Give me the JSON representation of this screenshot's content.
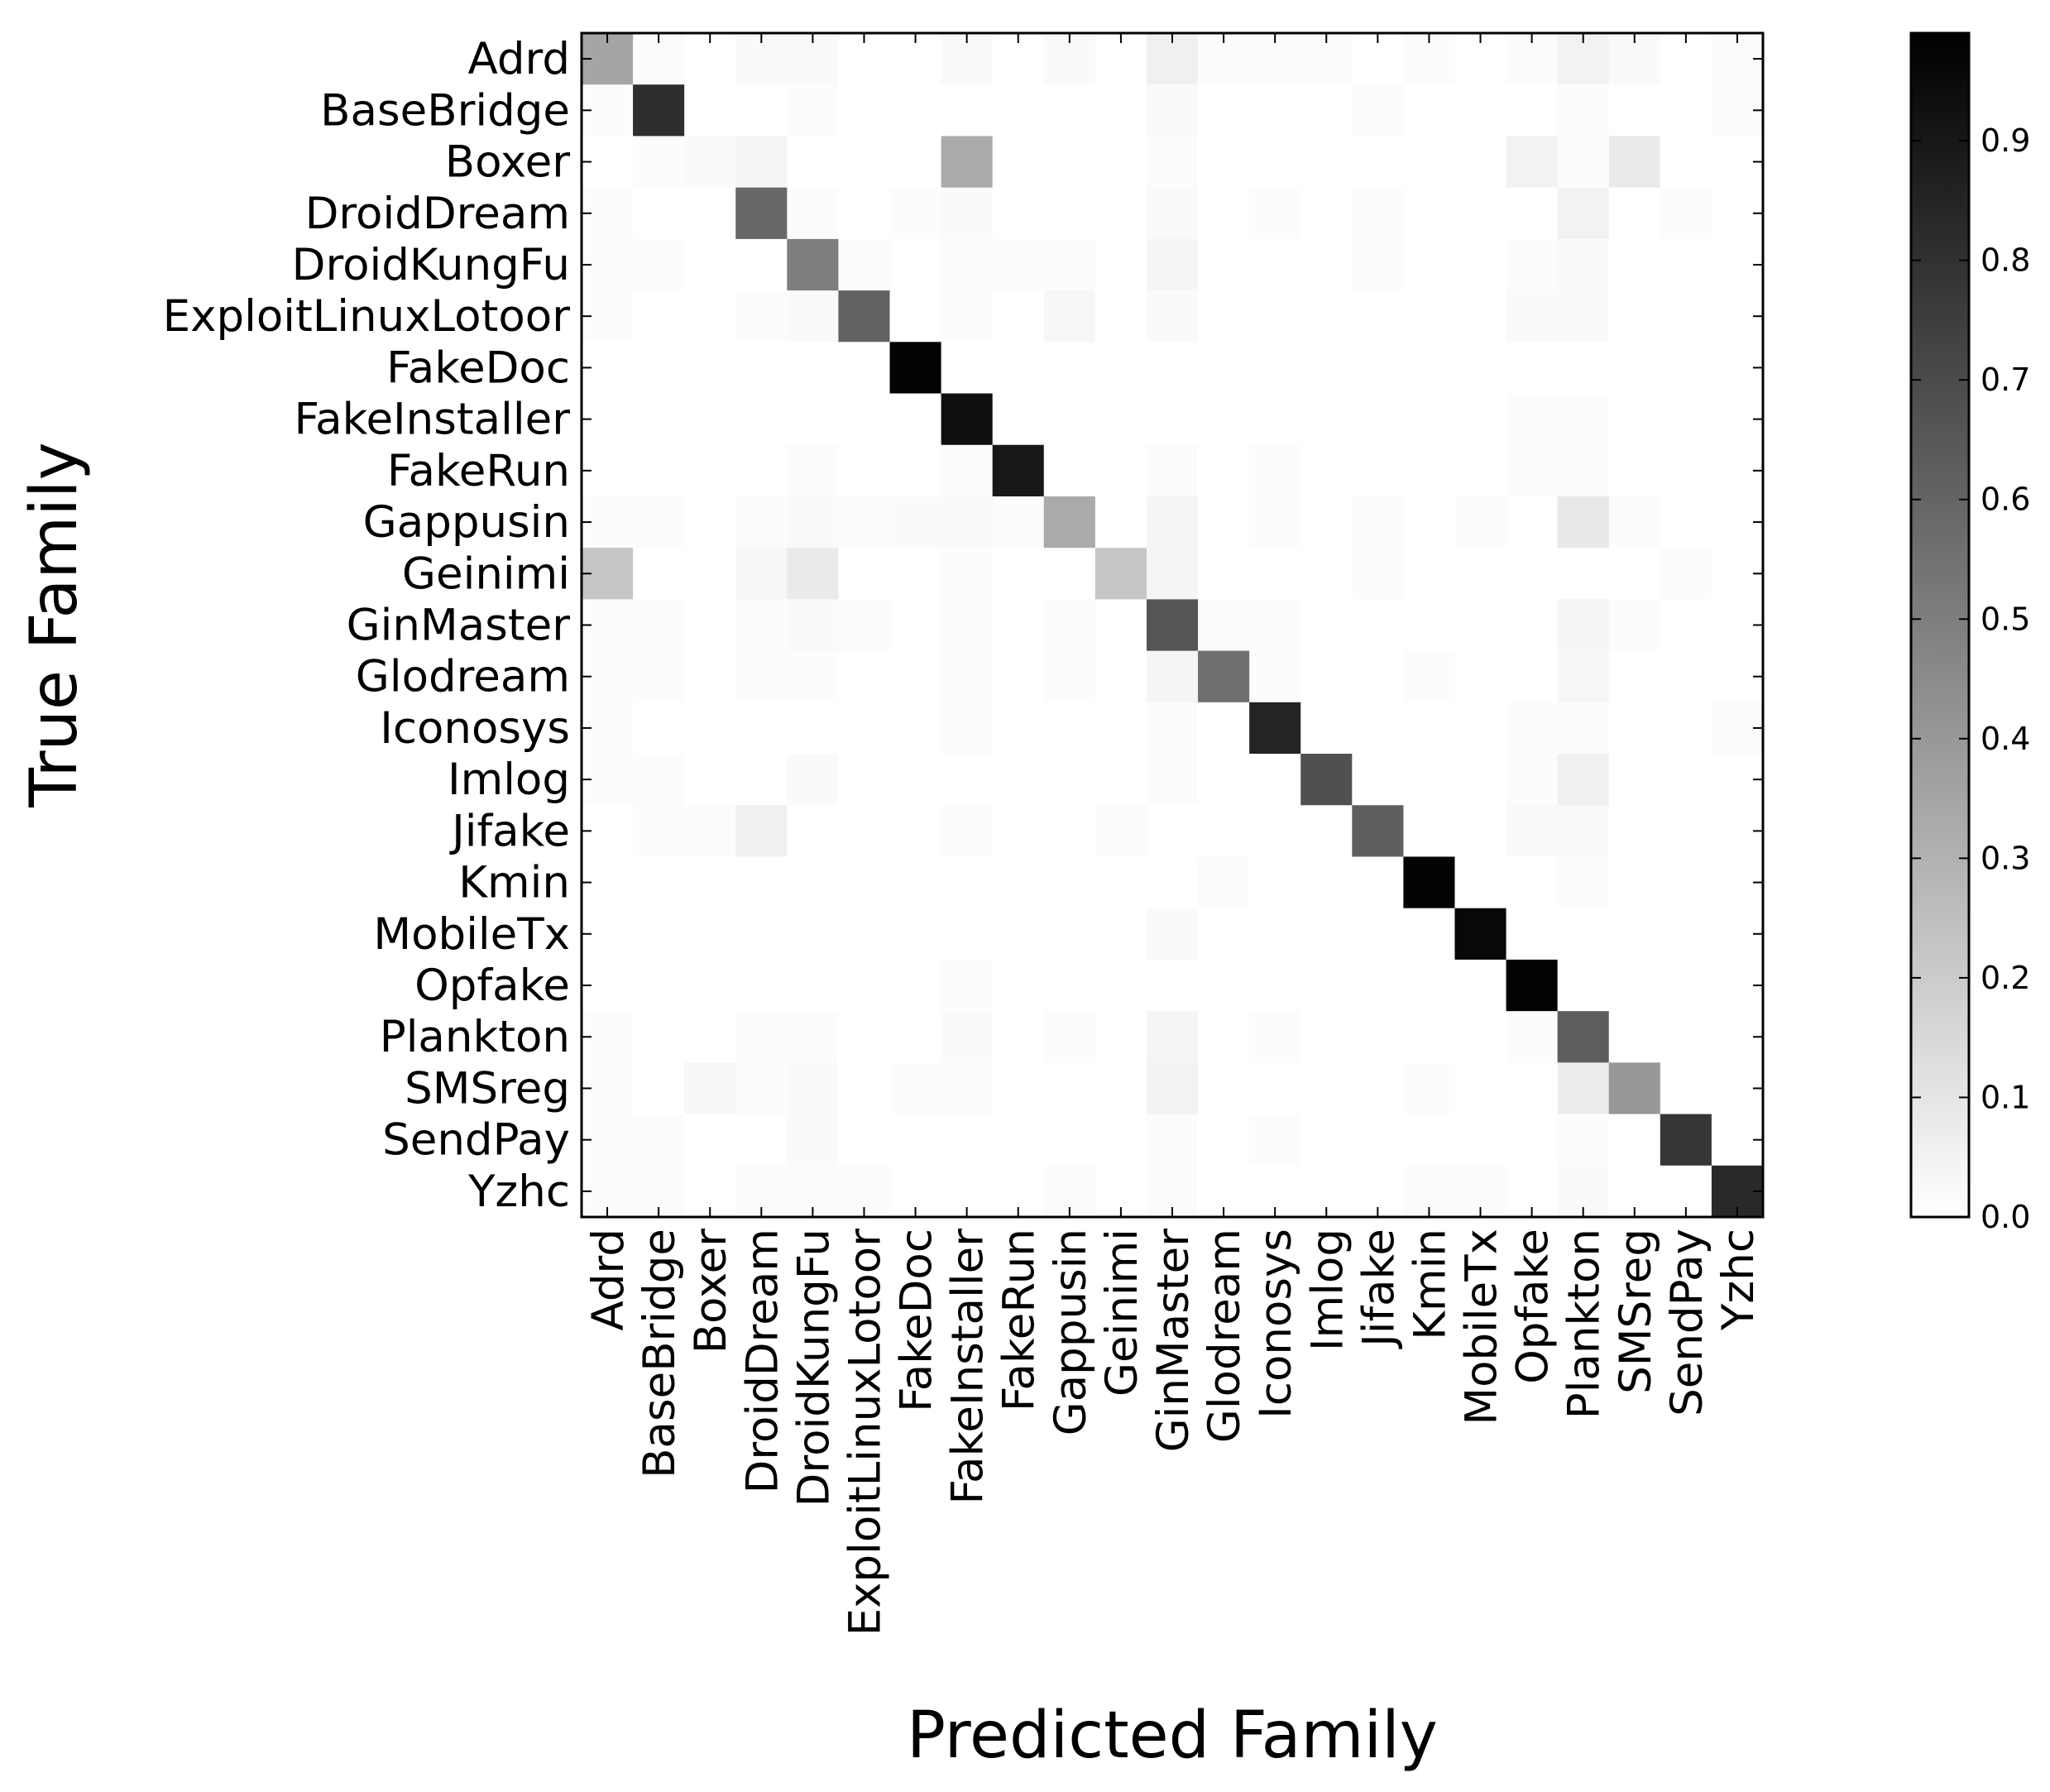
{
  "chart_data": {
    "type": "heatmap",
    "title": "",
    "xlabel": "Predicted Family",
    "ylabel": "True Family",
    "categories": [
      "Adrd",
      "BaseBridge",
      "Boxer",
      "DroidDream",
      "DroidKungFu",
      "ExploitLinuxLotoor",
      "FakeDoc",
      "FakeInstaller",
      "FakeRun",
      "Gappusin",
      "Geinimi",
      "GinMaster",
      "Glodream",
      "Iconosys",
      "Imlog",
      "Jifake",
      "Kmin",
      "MobileTx",
      "Opfake",
      "Plankton",
      "SMSreg",
      "SendPay",
      "Yzhc"
    ],
    "value_range": [
      0.0,
      1.0
    ],
    "colormap": "gray_r",
    "colorbar": {
      "ticks": [
        0.0,
        0.1,
        0.2,
        0.3,
        0.4,
        0.5,
        0.6,
        0.7,
        0.8,
        0.9
      ],
      "tick_labels": [
        "0.0",
        "0.1",
        "0.2",
        "0.3",
        "0.4",
        "0.5",
        "0.6",
        "0.7",
        "0.8",
        "0.9"
      ],
      "max": 0.99
    },
    "matrix": [
      [
        0.35,
        0.01,
        0,
        0.02,
        0.02,
        0,
        0,
        0.02,
        0,
        0.02,
        0,
        0.06,
        0.01,
        0.01,
        0.01,
        0,
        0.01,
        0,
        0.01,
        0.05,
        0.02,
        0,
        0.01
      ],
      [
        0.01,
        0.81,
        0,
        0,
        0.01,
        0,
        0,
        0,
        0,
        0,
        0,
        0.02,
        0,
        0,
        0,
        0.01,
        0,
        0,
        0,
        0.01,
        0,
        0,
        0.01
      ],
      [
        0,
        0.01,
        0.02,
        0.04,
        0,
        0,
        0,
        0.33,
        0,
        0,
        0,
        0.01,
        0,
        0,
        0,
        0,
        0,
        0,
        0.05,
        0.01,
        0.08,
        0,
        0
      ],
      [
        0.01,
        0,
        0,
        0.59,
        0.01,
        0,
        0.01,
        0.02,
        0,
        0,
        0,
        0.02,
        0,
        0.01,
        0,
        0.01,
        0,
        0,
        0,
        0.05,
        0,
        0.01,
        0
      ],
      [
        0.01,
        0.01,
        0,
        0,
        0.5,
        0.01,
        0,
        0.01,
        0.01,
        0.01,
        0,
        0.04,
        0,
        0,
        0,
        0.01,
        0,
        0,
        0.01,
        0.02,
        0,
        0,
        0
      ],
      [
        0.01,
        0,
        0,
        0.01,
        0.02,
        0.61,
        0,
        0.01,
        0,
        0.03,
        0,
        0.02,
        0,
        0,
        0,
        0,
        0,
        0,
        0.02,
        0.02,
        0,
        0,
        0
      ],
      [
        0,
        0,
        0,
        0,
        0,
        0,
        0.98,
        0,
        0,
        0,
        0,
        0,
        0,
        0,
        0,
        0,
        0,
        0,
        0,
        0,
        0,
        0,
        0
      ],
      [
        0,
        0,
        0,
        0,
        0,
        0,
        0,
        0.93,
        0,
        0,
        0,
        0,
        0,
        0,
        0,
        0,
        0,
        0,
        0.01,
        0.01,
        0,
        0,
        0
      ],
      [
        0,
        0,
        0,
        0,
        0.01,
        0,
        0,
        0.01,
        0.9,
        0,
        0,
        0.01,
        0,
        0.01,
        0,
        0,
        0,
        0,
        0.01,
        0.01,
        0,
        0,
        0
      ],
      [
        0.01,
        0.01,
        0,
        0.01,
        0.02,
        0.01,
        0.02,
        0.02,
        0.01,
        0.33,
        0,
        0.04,
        0,
        0.01,
        0,
        0.01,
        0,
        0.01,
        0,
        0.09,
        0.01,
        0,
        0
      ],
      [
        0.22,
        0,
        0,
        0.03,
        0.08,
        0,
        0,
        0.01,
        0,
        0,
        0.22,
        0.04,
        0,
        0,
        0,
        0.01,
        0,
        0,
        0,
        0,
        0,
        0.01,
        0
      ],
      [
        0.01,
        0.01,
        0,
        0.01,
        0.02,
        0.01,
        0,
        0.01,
        0,
        0.01,
        0,
        0.66,
        0.01,
        0.01,
        0,
        0,
        0,
        0,
        0,
        0.04,
        0.01,
        0,
        0
      ],
      [
        0.01,
        0.01,
        0,
        0.01,
        0.01,
        0,
        0,
        0.01,
        0,
        0.01,
        0,
        0.04,
        0.56,
        0.01,
        0,
        0,
        0.01,
        0,
        0,
        0.03,
        0,
        0,
        0
      ],
      [
        0.01,
        0,
        0,
        0,
        0,
        0,
        0,
        0.01,
        0,
        0,
        0,
        0.01,
        0,
        0.85,
        0,
        0,
        0,
        0,
        0.01,
        0.01,
        0,
        0,
        0.01
      ],
      [
        0.01,
        0.01,
        0,
        0,
        0.02,
        0,
        0,
        0,
        0,
        0,
        0,
        0.01,
        0,
        0,
        0.68,
        0,
        0,
        0,
        0.01,
        0.06,
        0,
        0,
        0
      ],
      [
        0,
        0.01,
        0.01,
        0.06,
        0,
        0,
        0,
        0.01,
        0,
        0,
        0.01,
        0,
        0,
        0,
        0,
        0.62,
        0,
        0,
        0.02,
        0.02,
        0,
        0,
        0
      ],
      [
        0,
        0,
        0,
        0,
        0,
        0,
        0,
        0,
        0,
        0,
        0,
        0,
        0.01,
        0,
        0,
        0,
        0.98,
        0,
        0,
        0.01,
        0,
        0,
        0
      ],
      [
        0,
        0,
        0,
        0,
        0,
        0,
        0,
        0,
        0,
        0,
        0,
        0.02,
        0,
        0,
        0,
        0,
        0,
        0.96,
        0,
        0,
        0,
        0,
        0
      ],
      [
        0,
        0,
        0,
        0,
        0,
        0,
        0,
        0.01,
        0,
        0,
        0,
        0,
        0,
        0,
        0,
        0,
        0,
        0,
        0.98,
        0,
        0,
        0,
        0
      ],
      [
        0.01,
        0,
        0,
        0.01,
        0.01,
        0,
        0,
        0.02,
        0,
        0.01,
        0,
        0.04,
        0,
        0.01,
        0,
        0,
        0,
        0,
        0.01,
        0.63,
        0,
        0,
        0
      ],
      [
        0.01,
        0,
        0.03,
        0.01,
        0.02,
        0,
        0.01,
        0.01,
        0,
        0,
        0,
        0.05,
        0,
        0,
        0,
        0,
        0.01,
        0,
        0,
        0.07,
        0.4,
        0,
        0
      ],
      [
        0.01,
        0.01,
        0,
        0,
        0.02,
        0,
        0,
        0,
        0,
        0,
        0,
        0.01,
        0,
        0.01,
        0,
        0,
        0,
        0,
        0,
        0.01,
        0,
        0.78,
        0
      ],
      [
        0.01,
        0.01,
        0,
        0.01,
        0.01,
        0.01,
        0,
        0,
        0,
        0.01,
        0,
        0.01,
        0,
        0,
        0,
        0,
        0.01,
        0.01,
        0,
        0.02,
        0,
        0,
        0.83
      ]
    ]
  }
}
